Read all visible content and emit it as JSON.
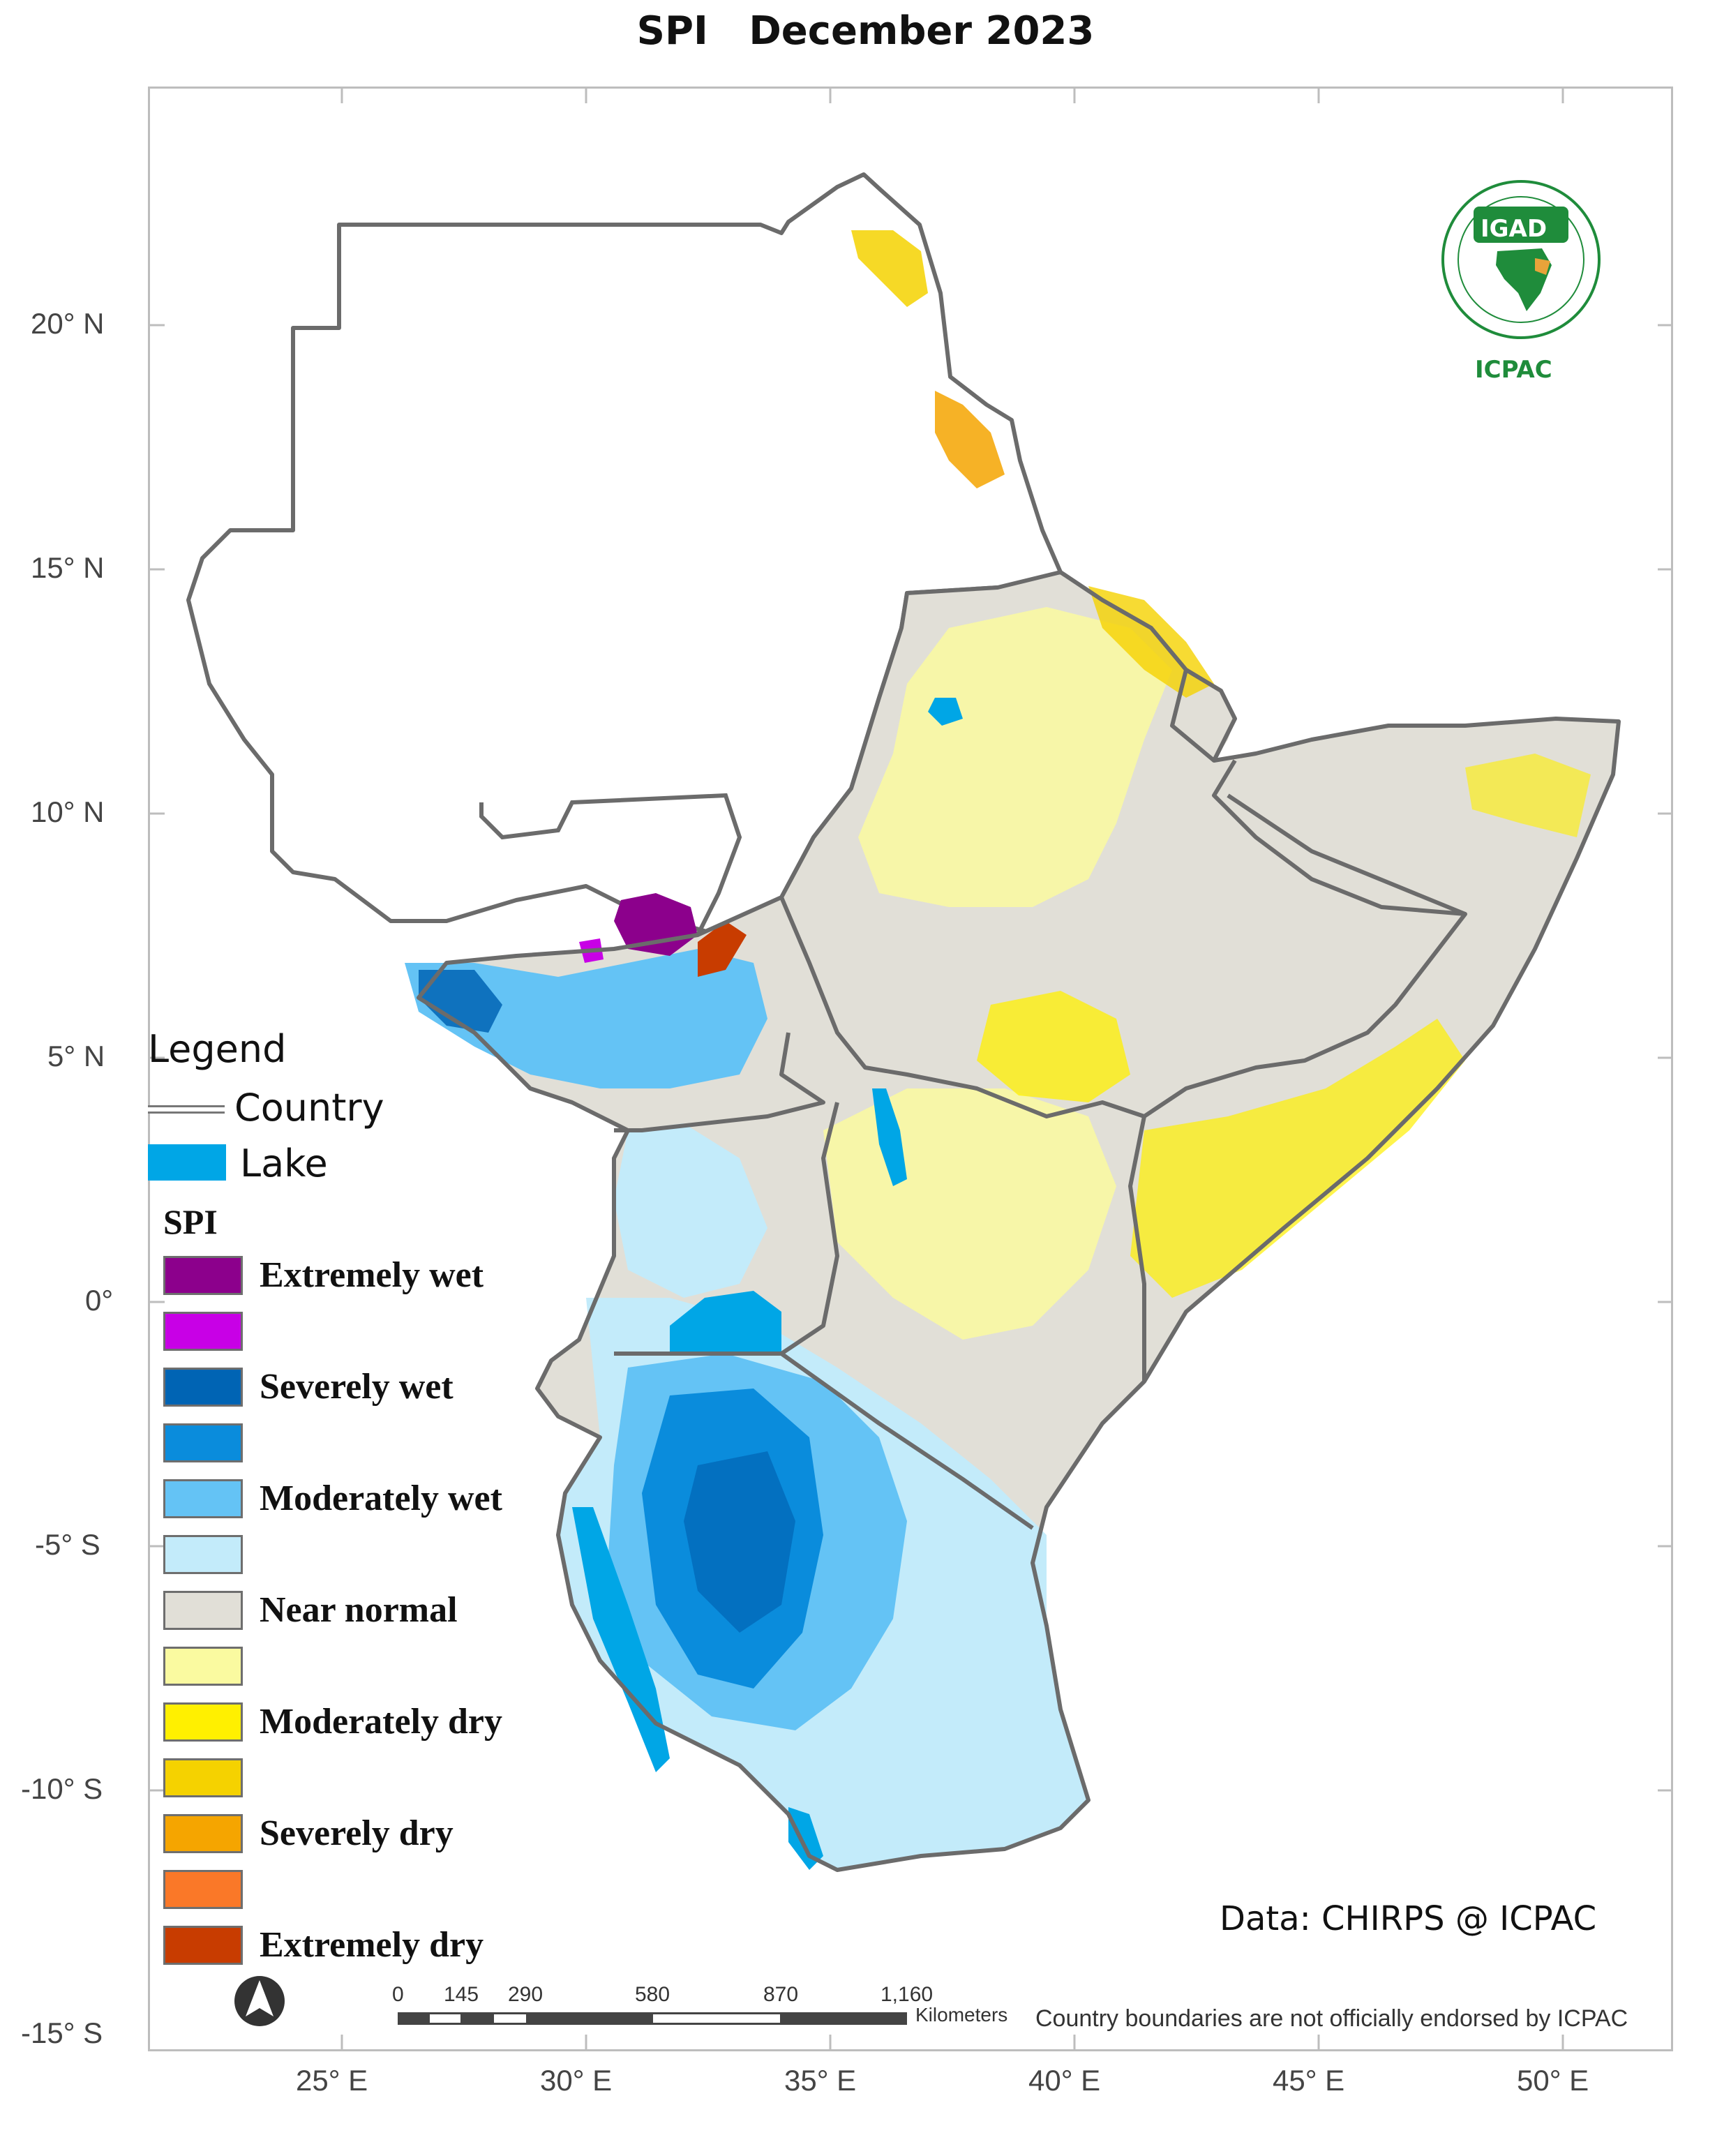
{
  "title": "SPI   December 2023",
  "axes": {
    "latitude_ticks": [
      {
        "label": "20° N",
        "lat": 20
      },
      {
        "label": "15° N",
        "lat": 15
      },
      {
        "label": "10° N",
        "lat": 10
      },
      {
        "label": "5° N",
        "lat": 5
      },
      {
        "label": "0°",
        "lat": 0
      },
      {
        "label": "-5° S",
        "lat": -5
      },
      {
        "label": "-10° S",
        "lat": -10
      },
      {
        "label": "-15° S",
        "lat": -15
      }
    ],
    "longitude_ticks": [
      {
        "label": "25° E",
        "lon": 25
      },
      {
        "label": "30° E",
        "lon": 30
      },
      {
        "label": "35° E",
        "lon": 35
      },
      {
        "label": "40° E",
        "lon": 40
      },
      {
        "label": "45° E",
        "lon": 45
      },
      {
        "label": "50° E",
        "lon": 50
      }
    ]
  },
  "legend": {
    "title": "Legend",
    "country_label": "Country",
    "lake_label": "Lake",
    "lake_color": "#00a6e6",
    "spi_title": "SPI",
    "classes": [
      {
        "color": "#8c008c",
        "label": "Extremely wet"
      },
      {
        "color": "#c800e6",
        "label": ""
      },
      {
        "color": "#0064b4",
        "label": "Severely wet"
      },
      {
        "color": "#0a8cdc",
        "label": ""
      },
      {
        "color": "#64c3f5",
        "label": "Moderately wet"
      },
      {
        "color": "#c3ebfa",
        "label": ""
      },
      {
        "color": "#e1dfd7",
        "label": "Near normal"
      },
      {
        "color": "#fafaa0",
        "label": ""
      },
      {
        "color": "#fff000",
        "label": "Moderately dry"
      },
      {
        "color": "#f5d200",
        "label": ""
      },
      {
        "color": "#f5a500",
        "label": "Severely dry"
      },
      {
        "color": "#fa7828",
        "label": ""
      },
      {
        "color": "#c83c00",
        "label": "Extremely dry"
      }
    ]
  },
  "logo": {
    "top_text": "IGAD",
    "bottom_text": "ICPAC"
  },
  "credit": "Data: CHIRPS @ ICPAC",
  "disclaimer": "Country boundaries are not officially endorsed by ICPAC",
  "scale_bar": {
    "labels": [
      "0",
      "145",
      "290",
      "580",
      "870",
      "1,160"
    ],
    "unit": "Kilometers"
  },
  "north_arrow": "north-arrow-icon",
  "colors": {
    "boundary": "#6b6b6b",
    "frame": "#bdbdbd"
  }
}
